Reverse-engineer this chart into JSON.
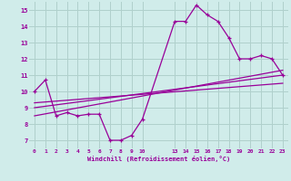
{
  "background_color": "#d0ecea",
  "grid_color": "#b0d0cc",
  "line_color": "#990099",
  "xlabel": "Windchill (Refroidissement éolien,°C)",
  "xlim": [
    -0.5,
    23.5
  ],
  "ylim": [
    6.5,
    15.5
  ],
  "xticks": [
    0,
    1,
    2,
    3,
    4,
    5,
    6,
    7,
    8,
    9,
    10,
    13,
    14,
    15,
    16,
    17,
    18,
    19,
    20,
    21,
    22,
    23
  ],
  "yticks": [
    7,
    8,
    9,
    10,
    11,
    12,
    13,
    14,
    15
  ],
  "series1_x": [
    0,
    1,
    2,
    3,
    4,
    5,
    6,
    7,
    8,
    9,
    10,
    13,
    14,
    15,
    16,
    17,
    18,
    19,
    20,
    21,
    22,
    23
  ],
  "series1_y": [
    10.0,
    10.7,
    8.5,
    8.7,
    8.5,
    8.6,
    8.6,
    7.0,
    7.0,
    7.3,
    8.3,
    14.3,
    14.3,
    15.3,
    14.7,
    14.3,
    13.3,
    12.0,
    12.0,
    12.2,
    12.0,
    11.0
  ],
  "series2_x": [
    0,
    23
  ],
  "series2_y": [
    9.3,
    10.5
  ],
  "series3_x": [
    0,
    23
  ],
  "series3_y": [
    9.0,
    11.0
  ],
  "series4_x": [
    0,
    23
  ],
  "series4_y": [
    8.5,
    11.3
  ]
}
